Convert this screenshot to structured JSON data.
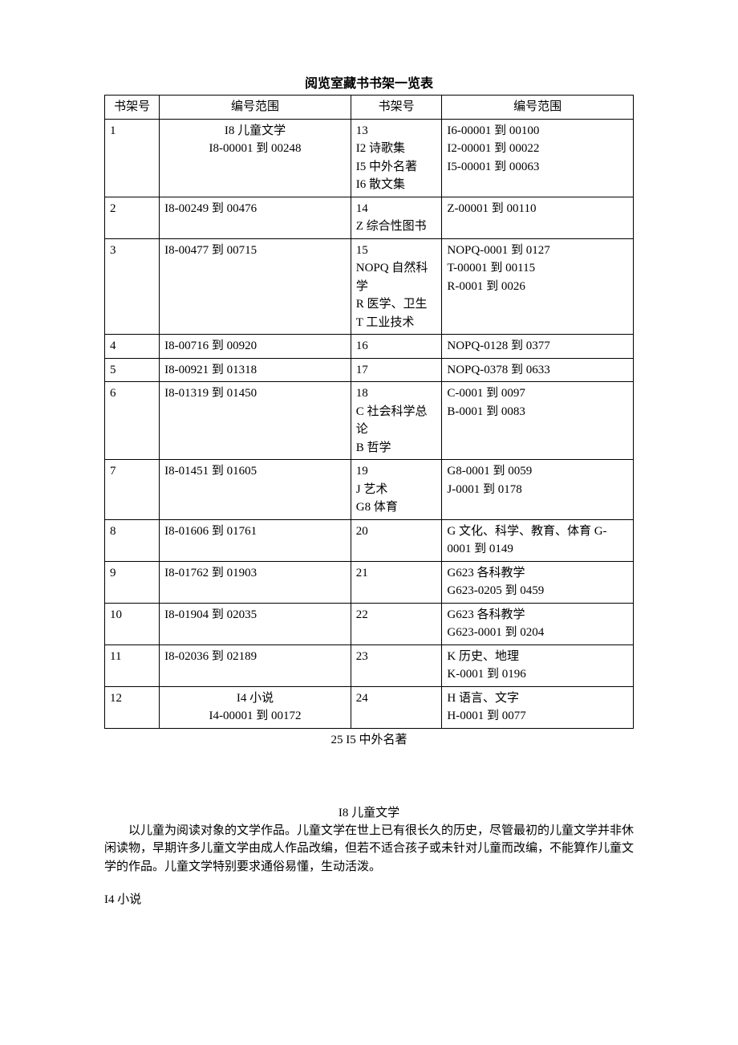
{
  "title": "阅览室藏书书架一览表",
  "headers": {
    "shelf": "书架号",
    "range": "编号范围"
  },
  "rows": [
    {
      "left_shelf": "1",
      "left_lines": [
        "I8 儿童文学",
        "I8-00001 到 00248"
      ],
      "left_centered": true,
      "right_shelf_lines": [
        "13",
        "I2 诗歌集",
        "I5 中外名著",
        "I6 散文集"
      ],
      "right_lines": [
        "I6-00001 到 00100",
        "I2-00001 到 00022",
        "I5-00001 到 00063"
      ]
    },
    {
      "left_shelf": "2",
      "left_lines": [
        "I8-00249 到 00476"
      ],
      "right_shelf_lines": [
        "14",
        "Z  综合性图书"
      ],
      "right_lines": [
        "Z-00001 到 00110"
      ]
    },
    {
      "left_shelf": "3",
      "left_lines": [
        "I8-00477 到 00715"
      ],
      "right_shelf_lines": [
        "15",
        "NOPQ 自然科学",
        "R  医学、卫生",
        "T  工业技术"
      ],
      "right_lines": [
        "NOPQ-0001 到 0127",
        "T-00001 到 00115",
        "R-0001 到 0026"
      ]
    },
    {
      "left_shelf": "4",
      "left_lines": [
        "I8-00716 到 00920"
      ],
      "right_shelf_lines": [
        "16"
      ],
      "right_lines": [
        "NOPQ-0128 到 0377"
      ]
    },
    {
      "left_shelf": "5",
      "left_lines": [
        "I8-00921 到 01318"
      ],
      "right_shelf_lines": [
        "17"
      ],
      "right_lines": [
        "NOPQ-0378 到 0633"
      ]
    },
    {
      "left_shelf": "6",
      "left_lines": [
        "I8-01319 到 01450"
      ],
      "right_shelf_lines": [
        "18",
        "C 社会科学总论",
        "B  哲学"
      ],
      "right_lines": [
        "C-0001 到 0097",
        "B-0001 到 0083"
      ]
    },
    {
      "left_shelf": "7",
      "left_lines": [
        "I8-01451 到 01605"
      ],
      "right_shelf_lines": [
        "19",
        "J  艺术",
        "G8 体育"
      ],
      "right_lines": [
        "G8-0001 到 0059",
        "J-0001 到 0178"
      ]
    },
    {
      "left_shelf": "8",
      "left_lines": [
        "I8-01606 到 01761"
      ],
      "right_shelf_lines": [
        "20"
      ],
      "right_lines": [
        "G 文化、科学、教育、体育 G-0001 到 0149"
      ]
    },
    {
      "left_shelf": "9",
      "left_lines": [
        "I8-01762 到 01903"
      ],
      "right_shelf_lines": [
        "21"
      ],
      "right_lines": [
        "G623 各科教学",
        "G623-0205 到 0459"
      ]
    },
    {
      "left_shelf": "10",
      "left_lines": [
        "I8-01904 到 02035"
      ],
      "right_shelf_lines": [
        "22"
      ],
      "right_lines": [
        "G623 各科教学",
        "G623-0001 到 0204"
      ]
    },
    {
      "left_shelf": "11",
      "left_lines": [
        "I8-02036 到 02189"
      ],
      "right_shelf_lines": [
        "23"
      ],
      "right_lines": [
        "K  历史、地理",
        "K-0001 到 0196"
      ]
    },
    {
      "left_shelf": "12",
      "left_lines": [
        "I4 小说",
        "I4-00001 到 00172"
      ],
      "left_centered": true,
      "right_shelf_lines": [
        "24"
      ],
      "right_lines": [
        "H  语言、文字",
        "H-0001 到 0077"
      ]
    }
  ],
  "footnote": "25 I5 中外名著",
  "section_title": "I8 儿童文学",
  "paragraph": "以儿童为阅读对象的文学作品。儿童文学在世上已有很长久的历史，尽管最初的儿童文学并非休闲读物，早期许多儿童文学由成人作品改编，但若不适合孩子或未针对儿童而改编，不能算作儿童文学的作品。儿童文学特别要求通俗易懂，生动活泼。",
  "section_label": "I4 小说"
}
